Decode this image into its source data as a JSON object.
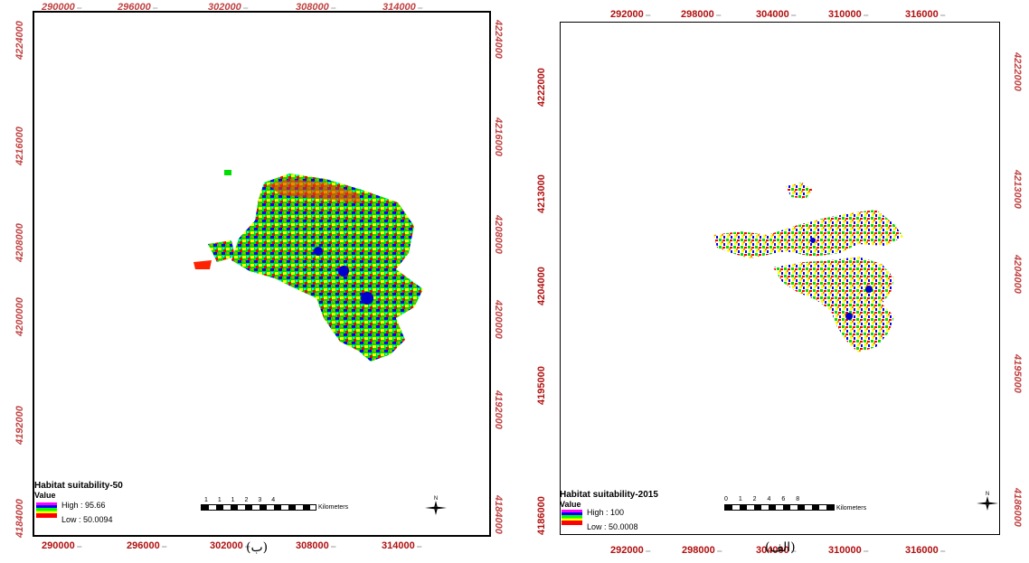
{
  "panels": [
    {
      "id": "b",
      "caption": "(ب)",
      "x_ticks": [
        "290000",
        "296000",
        "302000",
        "308000",
        "314000"
      ],
      "y_ticks": [
        "4224000",
        "4216000",
        "4208000",
        "4200000",
        "4192000",
        "4184000"
      ],
      "legend": {
        "title": "Habitat suitability-50",
        "subtitle": "Value",
        "high": "High : 95.66",
        "low": "Low : 50.0094"
      },
      "scale": {
        "numbers": "1 1 1 2 3 4",
        "unit": "Kilometers"
      },
      "north": "N"
    },
    {
      "id": "alef",
      "caption": "(الف)",
      "x_ticks": [
        "292000",
        "298000",
        "304000",
        "310000",
        "316000"
      ],
      "y_ticks": [
        "4222000",
        "4213000",
        "4204000",
        "4195000",
        "4186000"
      ],
      "legend": {
        "title": "Habitat suitability-2015",
        "subtitle": "Value",
        "high": "High : 100",
        "low": "Low : 50.0008"
      },
      "scale": {
        "numbers": "0 1 2 4 6 8",
        "unit": "Kilometers"
      },
      "north": "N"
    }
  ],
  "colors": {
    "tick_red": "#b01010",
    "ramp": [
      "#ff00ff",
      "#0000ff",
      "#00ff00",
      "#ffff00",
      "#ff0000"
    ]
  }
}
